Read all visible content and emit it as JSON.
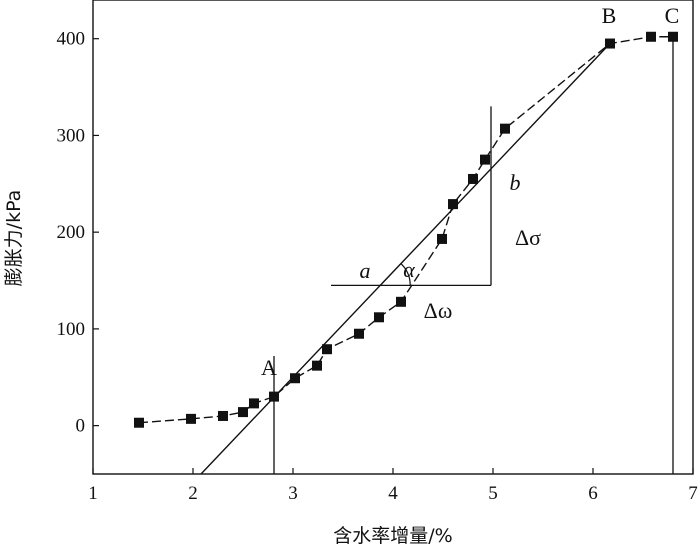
{
  "chart_data": {
    "type": "line",
    "xlabel": "含水率增量/%",
    "ylabel": "膨胀力/kPa",
    "xlim": [
      1,
      7
    ],
    "ylim": [
      -50,
      440
    ],
    "x_ticks": [
      1,
      2,
      3,
      4,
      5,
      6,
      7
    ],
    "y_ticks": [
      0,
      100,
      200,
      300,
      400
    ],
    "grid": false,
    "series": [
      {
        "marker": "square",
        "line_style": "dashed",
        "x": [
          1.46,
          1.98,
          2.3,
          2.5,
          2.61,
          2.81,
          3.02,
          3.24,
          3.34,
          3.66,
          3.86,
          4.08,
          4.49,
          4.6,
          4.8,
          4.92,
          5.12,
          6.17,
          6.58,
          6.8
        ],
        "y": [
          3,
          7,
          10,
          14,
          23,
          30,
          49,
          62,
          79,
          95,
          112,
          128,
          193,
          229,
          255,
          275,
          307,
          395,
          402,
          402
        ]
      }
    ],
    "fit_line": {
      "x": [
        2.08,
        6.17
      ],
      "y": [
        -50,
        395
      ]
    },
    "reference_lines": {
      "vertical_A": {
        "x": 2.81,
        "y": [
          -50,
          72
        ]
      },
      "vertical_C": {
        "x": 6.8,
        "y": [
          -50,
          402
        ]
      },
      "delta_sigma_vertical": {
        "x": 4.98,
        "y": [
          145,
          330
        ]
      },
      "delta_omega_horizontal": {
        "y": 145,
        "x": [
          3.38,
          4.98
        ]
      }
    },
    "annotations": {
      "A": "A",
      "B": "B",
      "C": "C",
      "a": "a",
      "b": "b",
      "alpha": "α",
      "delta_sigma": "Δσ",
      "delta_omega": "Δω"
    }
  },
  "colors": {
    "ink": "#111111",
    "background": "#ffffff"
  }
}
